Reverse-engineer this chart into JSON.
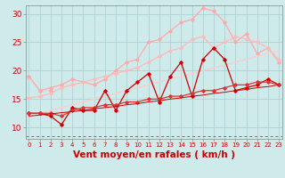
{
  "x": [
    0,
    1,
    2,
    3,
    4,
    5,
    6,
    7,
    8,
    9,
    10,
    11,
    12,
    13,
    14,
    15,
    16,
    17,
    18,
    19,
    20,
    21,
    22,
    23
  ],
  "background_color": "#ceeaea",
  "grid_color": "#aacccc",
  "xlabel": "Vent moyen/en rafales ( km/h )",
  "xlabel_color": "#cc0000",
  "xlabel_fontsize": 7.5,
  "yticks": [
    10,
    15,
    20,
    25,
    30
  ],
  "ylim": [
    8.0,
    31.5
  ],
  "xlim": [
    -0.3,
    23.3
  ],
  "series": [
    {
      "label": "line1_light_upper_dotted",
      "color": "#ffaaaa",
      "linewidth": 0.8,
      "marker": "D",
      "markersize": 1.8,
      "linestyle": ":",
      "values": [
        19.0,
        16.5,
        16.5,
        null,
        null,
        null,
        null,
        null,
        null,
        null,
        null,
        null,
        null,
        null,
        null,
        null,
        null,
        null,
        null,
        null,
        null,
        null,
        null,
        null
      ]
    },
    {
      "label": "line2_light_upper_main",
      "color": "#ffaaaa",
      "linewidth": 0.9,
      "marker": "D",
      "markersize": 1.8,
      "linestyle": "-",
      "values": [
        null,
        null,
        null,
        null,
        null,
        null,
        null,
        null,
        null,
        null,
        null,
        null,
        null,
        null,
        null,
        null,
        null,
        null,
        null,
        null,
        null,
        null,
        null,
        null
      ]
    },
    {
      "label": "line_upper_light",
      "color": "#ffaaaa",
      "linewidth": 0.9,
      "marker": "D",
      "markersize": 1.8,
      "linestyle": "-",
      "values": [
        19.0,
        16.5,
        17.0,
        17.5,
        18.5,
        18.0,
        17.5,
        18.5,
        20.0,
        21.5,
        22.0,
        25.0,
        25.5,
        27.0,
        28.5,
        29.0,
        31.0,
        30.5,
        28.5,
        25.0,
        26.5,
        23.0,
        24.0,
        21.5
      ]
    },
    {
      "label": "line_mid_light",
      "color": "#ffbbbb",
      "linewidth": 0.9,
      "marker": "D",
      "markersize": 1.8,
      "linestyle": "-",
      "values": [
        15.2,
        15.5,
        16.0,
        17.0,
        17.5,
        18.0,
        18.5,
        19.0,
        19.5,
        20.0,
        20.5,
        21.5,
        22.5,
        23.5,
        24.0,
        25.5,
        26.0,
        24.0,
        25.0,
        26.0,
        25.5,
        25.0,
        24.0,
        22.0
      ]
    },
    {
      "label": "line_lower_light_straight",
      "color": "#ffcccc",
      "linewidth": 0.9,
      "marker": null,
      "markersize": 0,
      "linestyle": "-",
      "values": [
        12.0,
        12.5,
        13.0,
        13.5,
        14.0,
        14.5,
        15.0,
        15.5,
        16.0,
        16.5,
        17.0,
        17.5,
        18.0,
        18.5,
        19.0,
        19.5,
        20.0,
        20.5,
        21.0,
        21.5,
        22.0,
        22.5,
        23.0,
        23.5
      ]
    },
    {
      "label": "line_dark_jagged",
      "color": "#cc0000",
      "linewidth": 0.9,
      "marker": "D",
      "markersize": 1.8,
      "linestyle": "-",
      "values": [
        12.5,
        12.5,
        12.0,
        10.5,
        13.5,
        13.0,
        13.0,
        16.5,
        13.0,
        16.5,
        18.0,
        19.5,
        14.5,
        19.0,
        21.5,
        15.5,
        22.0,
        24.0,
        22.0,
        16.5,
        17.0,
        17.5,
        18.5,
        17.5
      ]
    },
    {
      "label": "line_dark_smooth1",
      "color": "#dd3333",
      "linewidth": 0.9,
      "marker": "D",
      "markersize": 1.8,
      "linestyle": "-",
      "values": [
        12.5,
        12.5,
        12.5,
        12.0,
        13.0,
        13.5,
        13.5,
        14.0,
        14.0,
        14.5,
        14.5,
        15.0,
        15.0,
        15.5,
        15.5,
        16.0,
        16.5,
        16.5,
        17.0,
        17.5,
        17.5,
        18.0,
        18.0,
        17.5
      ]
    },
    {
      "label": "line_dark_straight",
      "color": "#cc0000",
      "linewidth": 0.7,
      "marker": null,
      "markersize": 0,
      "linestyle": "-",
      "values": [
        12.0,
        12.2,
        12.4,
        12.6,
        12.8,
        13.0,
        13.3,
        13.5,
        13.7,
        14.0,
        14.2,
        14.5,
        14.7,
        15.0,
        15.2,
        15.5,
        15.7,
        16.0,
        16.2,
        16.5,
        16.7,
        17.0,
        17.2,
        17.5
      ]
    }
  ],
  "dashed_line": {
    "color": "#dd4444",
    "y": 8.5,
    "linewidth": 0.7,
    "linestyle": "--",
    "dashes": [
      3,
      3
    ]
  }
}
